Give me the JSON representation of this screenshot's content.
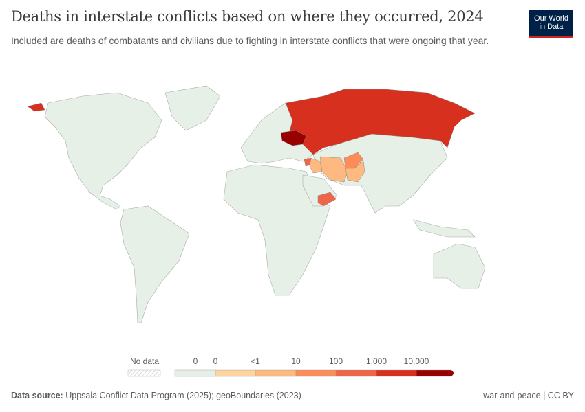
{
  "title": "Deaths in interstate conflicts based on where they occurred, 2024",
  "subtitle": "Included are deaths of combatants and civilians due to fighting in interstate conflicts that were ongoing that year.",
  "logo": {
    "line1": "Our World",
    "line2": "in Data"
  },
  "legend": {
    "no_data_label": "No data",
    "bins": [
      {
        "label": "0",
        "color": "#e6f0e6"
      },
      {
        "label": "0",
        "color": "#fdd49e"
      },
      {
        "label": "<1",
        "color": "#fdb97f"
      },
      {
        "label": "10",
        "color": "#fc8d59"
      },
      {
        "label": "100",
        "color": "#ef6548"
      },
      {
        "label": "1,000",
        "color": "#d7301f"
      },
      {
        "label": "10,000",
        "color": "#990000"
      }
    ]
  },
  "chart_data": {
    "type": "choropleth",
    "year": 2024,
    "bins": [
      "0",
      "0 to <1",
      "<1 to 10",
      "10 to 100",
      "100 to 1,000",
      "1,000 to 10,000",
      ">10,000"
    ],
    "countries": [
      {
        "name": "Ukraine",
        "bin": ">10,000",
        "color": "#990000"
      },
      {
        "name": "Russia",
        "bin": "1,000 to 10,000",
        "color": "#d7301f"
      },
      {
        "name": "Syria",
        "bin": "100 to 1,000",
        "color": "#ef6548"
      },
      {
        "name": "Yemen",
        "bin": "100 to 1,000",
        "color": "#ef6548"
      },
      {
        "name": "Afghanistan",
        "bin": "10 to 100",
        "color": "#fc8d59"
      },
      {
        "name": "Iran",
        "bin": "<1 to 10",
        "color": "#fdb97f"
      },
      {
        "name": "Iraq",
        "bin": "<1 to 10",
        "color": "#fdb97f"
      },
      {
        "name": "Pakistan",
        "bin": "<1 to 10",
        "color": "#fdb97f"
      }
    ],
    "default_color": "#e6f0e6"
  },
  "footer": {
    "source_label": "Data source:",
    "source_text": "Uppsala Conflict Data Program (2025); geoBoundaries (2023)",
    "right_text": "war-and-peace | CC BY"
  }
}
